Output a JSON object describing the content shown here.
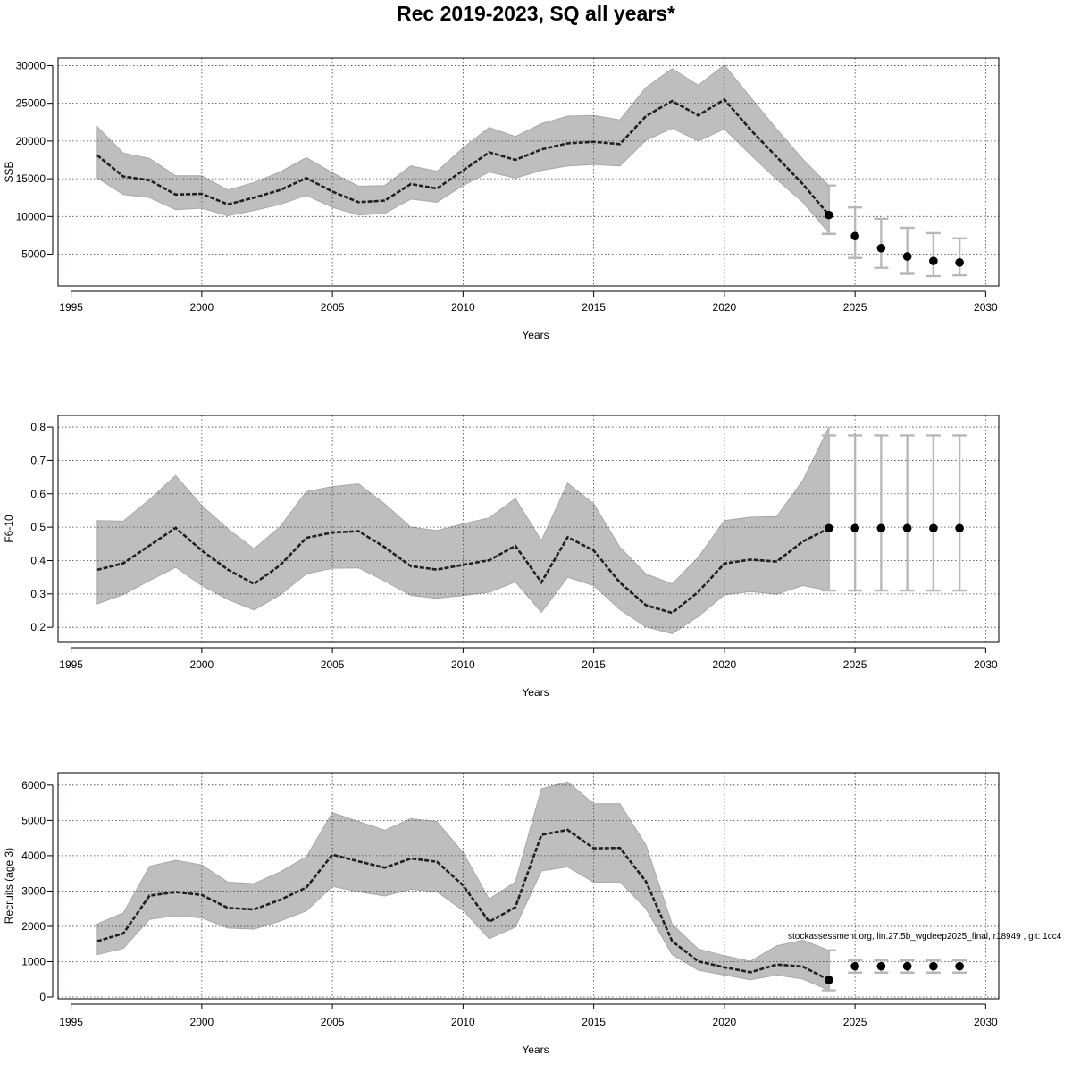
{
  "title": "Rec 2019-2023, SQ all years*",
  "watermark": "stockassessment.org, lin.27.5b_wgdeep2025_final, r18949 , git: 1cc4",
  "colors": {
    "band": "#bebebe",
    "band_edge": "#a8a8a8",
    "line": "#202020",
    "errbar": "#b8b8b8",
    "point": "#000000",
    "grid": "#404040"
  },
  "chart_data": [
    {
      "type": "line",
      "xlabel": "Years",
      "ylabel": "SSB",
      "xlim": [
        1994.5,
        2030.5
      ],
      "ylim": [
        800,
        31000
      ],
      "xticks": [
        1995,
        2000,
        2005,
        2010,
        2015,
        2020,
        2025,
        2030
      ],
      "yticks": [
        5000,
        10000,
        15000,
        20000,
        25000,
        30000
      ],
      "grid": true,
      "series": [
        {
          "kind": "estimate_with_ci",
          "x": [
            1996,
            1997,
            1998,
            1999,
            2000,
            2001,
            2002,
            2003,
            2004,
            2005,
            2006,
            2007,
            2008,
            2009,
            2010,
            2011,
            2012,
            2013,
            2014,
            2015,
            2016,
            2017,
            2018,
            2019,
            2020,
            2021,
            2022,
            2023,
            2024
          ],
          "y": [
            18100,
            15300,
            14800,
            12900,
            13000,
            11600,
            12500,
            13500,
            15100,
            13300,
            11900,
            12100,
            14300,
            13700,
            16100,
            18500,
            17500,
            18900,
            19700,
            19900,
            19600,
            23300,
            25300,
            23400,
            25500,
            21500,
            17900,
            14300,
            10200
          ],
          "lower": [
            15100,
            12900,
            12500,
            10900,
            11100,
            10100,
            10800,
            11600,
            12800,
            11200,
            10200,
            10400,
            12300,
            11900,
            14100,
            15900,
            15100,
            16100,
            16700,
            16900,
            16700,
            20100,
            21700,
            20000,
            21600,
            18200,
            14900,
            11900,
            7800
          ],
          "upper": [
            21900,
            18400,
            17700,
            15400,
            15400,
            13500,
            14500,
            15900,
            17800,
            15800,
            14000,
            14100,
            16700,
            16000,
            19100,
            21800,
            20600,
            22300,
            23300,
            23400,
            22800,
            27100,
            29600,
            27400,
            30100,
            25800,
            21600,
            17600,
            14100
          ]
        },
        {
          "kind": "forecast",
          "x": [
            2024,
            2025,
            2026,
            2027,
            2028,
            2029
          ],
          "y": [
            10200,
            7400,
            5800,
            4700,
            4100,
            3900
          ],
          "lower": [
            7700,
            4500,
            3200,
            2400,
            2100,
            2200
          ],
          "upper": [
            14100,
            11200,
            9700,
            8500,
            7800,
            7100
          ]
        }
      ]
    },
    {
      "type": "line",
      "xlabel": "Years",
      "ylabel": "F̄6-10",
      "xlim": [
        1994.5,
        2030.5
      ],
      "ylim": [
        0.155,
        0.835
      ],
      "xticks": [
        1995,
        2000,
        2005,
        2010,
        2015,
        2020,
        2025,
        2030
      ],
      "yticks": [
        0.2,
        0.3,
        0.4,
        0.5,
        0.6,
        0.7,
        0.8
      ],
      "grid": true,
      "series": [
        {
          "kind": "estimate_with_ci",
          "x": [
            1996,
            1997,
            1998,
            1999,
            2000,
            2001,
            2002,
            2003,
            2004,
            2005,
            2006,
            2007,
            2008,
            2009,
            2010,
            2011,
            2012,
            2013,
            2014,
            2015,
            2016,
            2017,
            2018,
            2019,
            2020,
            2021,
            2022,
            2023,
            2024
          ],
          "y": [
            0.372,
            0.392,
            0.445,
            0.498,
            0.43,
            0.373,
            0.33,
            0.386,
            0.468,
            0.484,
            0.488,
            0.44,
            0.383,
            0.373,
            0.387,
            0.401,
            0.444,
            0.335,
            0.47,
            0.43,
            0.334,
            0.266,
            0.243,
            0.306,
            0.391,
            0.403,
            0.397,
            0.457,
            0.497
          ],
          "lower": [
            0.27,
            0.298,
            0.34,
            0.38,
            0.325,
            0.283,
            0.252,
            0.297,
            0.36,
            0.377,
            0.378,
            0.339,
            0.295,
            0.287,
            0.295,
            0.305,
            0.336,
            0.245,
            0.35,
            0.325,
            0.253,
            0.201,
            0.181,
            0.232,
            0.297,
            0.307,
            0.299,
            0.325,
            0.31
          ],
          "upper": [
            0.52,
            0.518,
            0.583,
            0.655,
            0.565,
            0.495,
            0.435,
            0.502,
            0.607,
            0.622,
            0.63,
            0.57,
            0.5,
            0.49,
            0.51,
            0.528,
            0.586,
            0.46,
            0.632,
            0.57,
            0.44,
            0.36,
            0.33,
            0.41,
            0.52,
            0.53,
            0.532,
            0.64,
            0.8
          ]
        },
        {
          "kind": "forecast",
          "x": [
            2024,
            2025,
            2026,
            2027,
            2028,
            2029
          ],
          "y": [
            0.497,
            0.497,
            0.497,
            0.497,
            0.497,
            0.497
          ],
          "lower": [
            0.31,
            0.31,
            0.31,
            0.31,
            0.31,
            0.31
          ],
          "upper": [
            0.775,
            0.775,
            0.775,
            0.775,
            0.775,
            0.775
          ]
        }
      ]
    },
    {
      "type": "line",
      "xlabel": "Years",
      "ylabel": "Recruits (age 3)",
      "xlim": [
        1994.5,
        2030.5
      ],
      "ylim": [
        -50,
        6350
      ],
      "xticks": [
        1995,
        2000,
        2005,
        2010,
        2015,
        2020,
        2025,
        2030
      ],
      "yticks": [
        0,
        1000,
        2000,
        3000,
        4000,
        5000,
        6000
      ],
      "grid": true,
      "series": [
        {
          "kind": "estimate_with_ci",
          "x": [
            1996,
            1997,
            1998,
            1999,
            2000,
            2001,
            2002,
            2003,
            2004,
            2005,
            2006,
            2007,
            2008,
            2009,
            2010,
            2011,
            2012,
            2013,
            2014,
            2015,
            2016,
            2017,
            2018,
            2019,
            2020,
            2021,
            2022,
            2023,
            2024
          ],
          "y": [
            1580,
            1800,
            2870,
            2970,
            2890,
            2520,
            2480,
            2750,
            3100,
            4030,
            3840,
            3660,
            3920,
            3830,
            3160,
            2130,
            2540,
            4590,
            4730,
            4210,
            4220,
            3270,
            1580,
            1010,
            840,
            700,
            920,
            860,
            480
          ],
          "lower": [
            1200,
            1380,
            2200,
            2300,
            2240,
            1950,
            1920,
            2150,
            2440,
            3130,
            2980,
            2860,
            3050,
            2980,
            2450,
            1650,
            1980,
            3570,
            3680,
            3250,
            3260,
            2500,
            1200,
            760,
            620,
            490,
            620,
            510,
            190
          ],
          "upper": [
            2070,
            2380,
            3700,
            3870,
            3740,
            3250,
            3210,
            3540,
            3970,
            5220,
            4970,
            4720,
            5050,
            4970,
            4090,
            2770,
            3260,
            5900,
            6090,
            5470,
            5470,
            4300,
            2060,
            1360,
            1170,
            1010,
            1450,
            1610,
            1320
          ]
        },
        {
          "kind": "forecast",
          "x": [
            2024,
            2025,
            2026,
            2027,
            2028,
            2029
          ],
          "y": [
            480,
            870,
            870,
            870,
            870,
            870
          ],
          "lower": [
            190,
            690,
            690,
            690,
            690,
            690
          ],
          "upper": [
            1320,
            1040,
            1040,
            1040,
            1040,
            1040
          ]
        }
      ]
    }
  ]
}
